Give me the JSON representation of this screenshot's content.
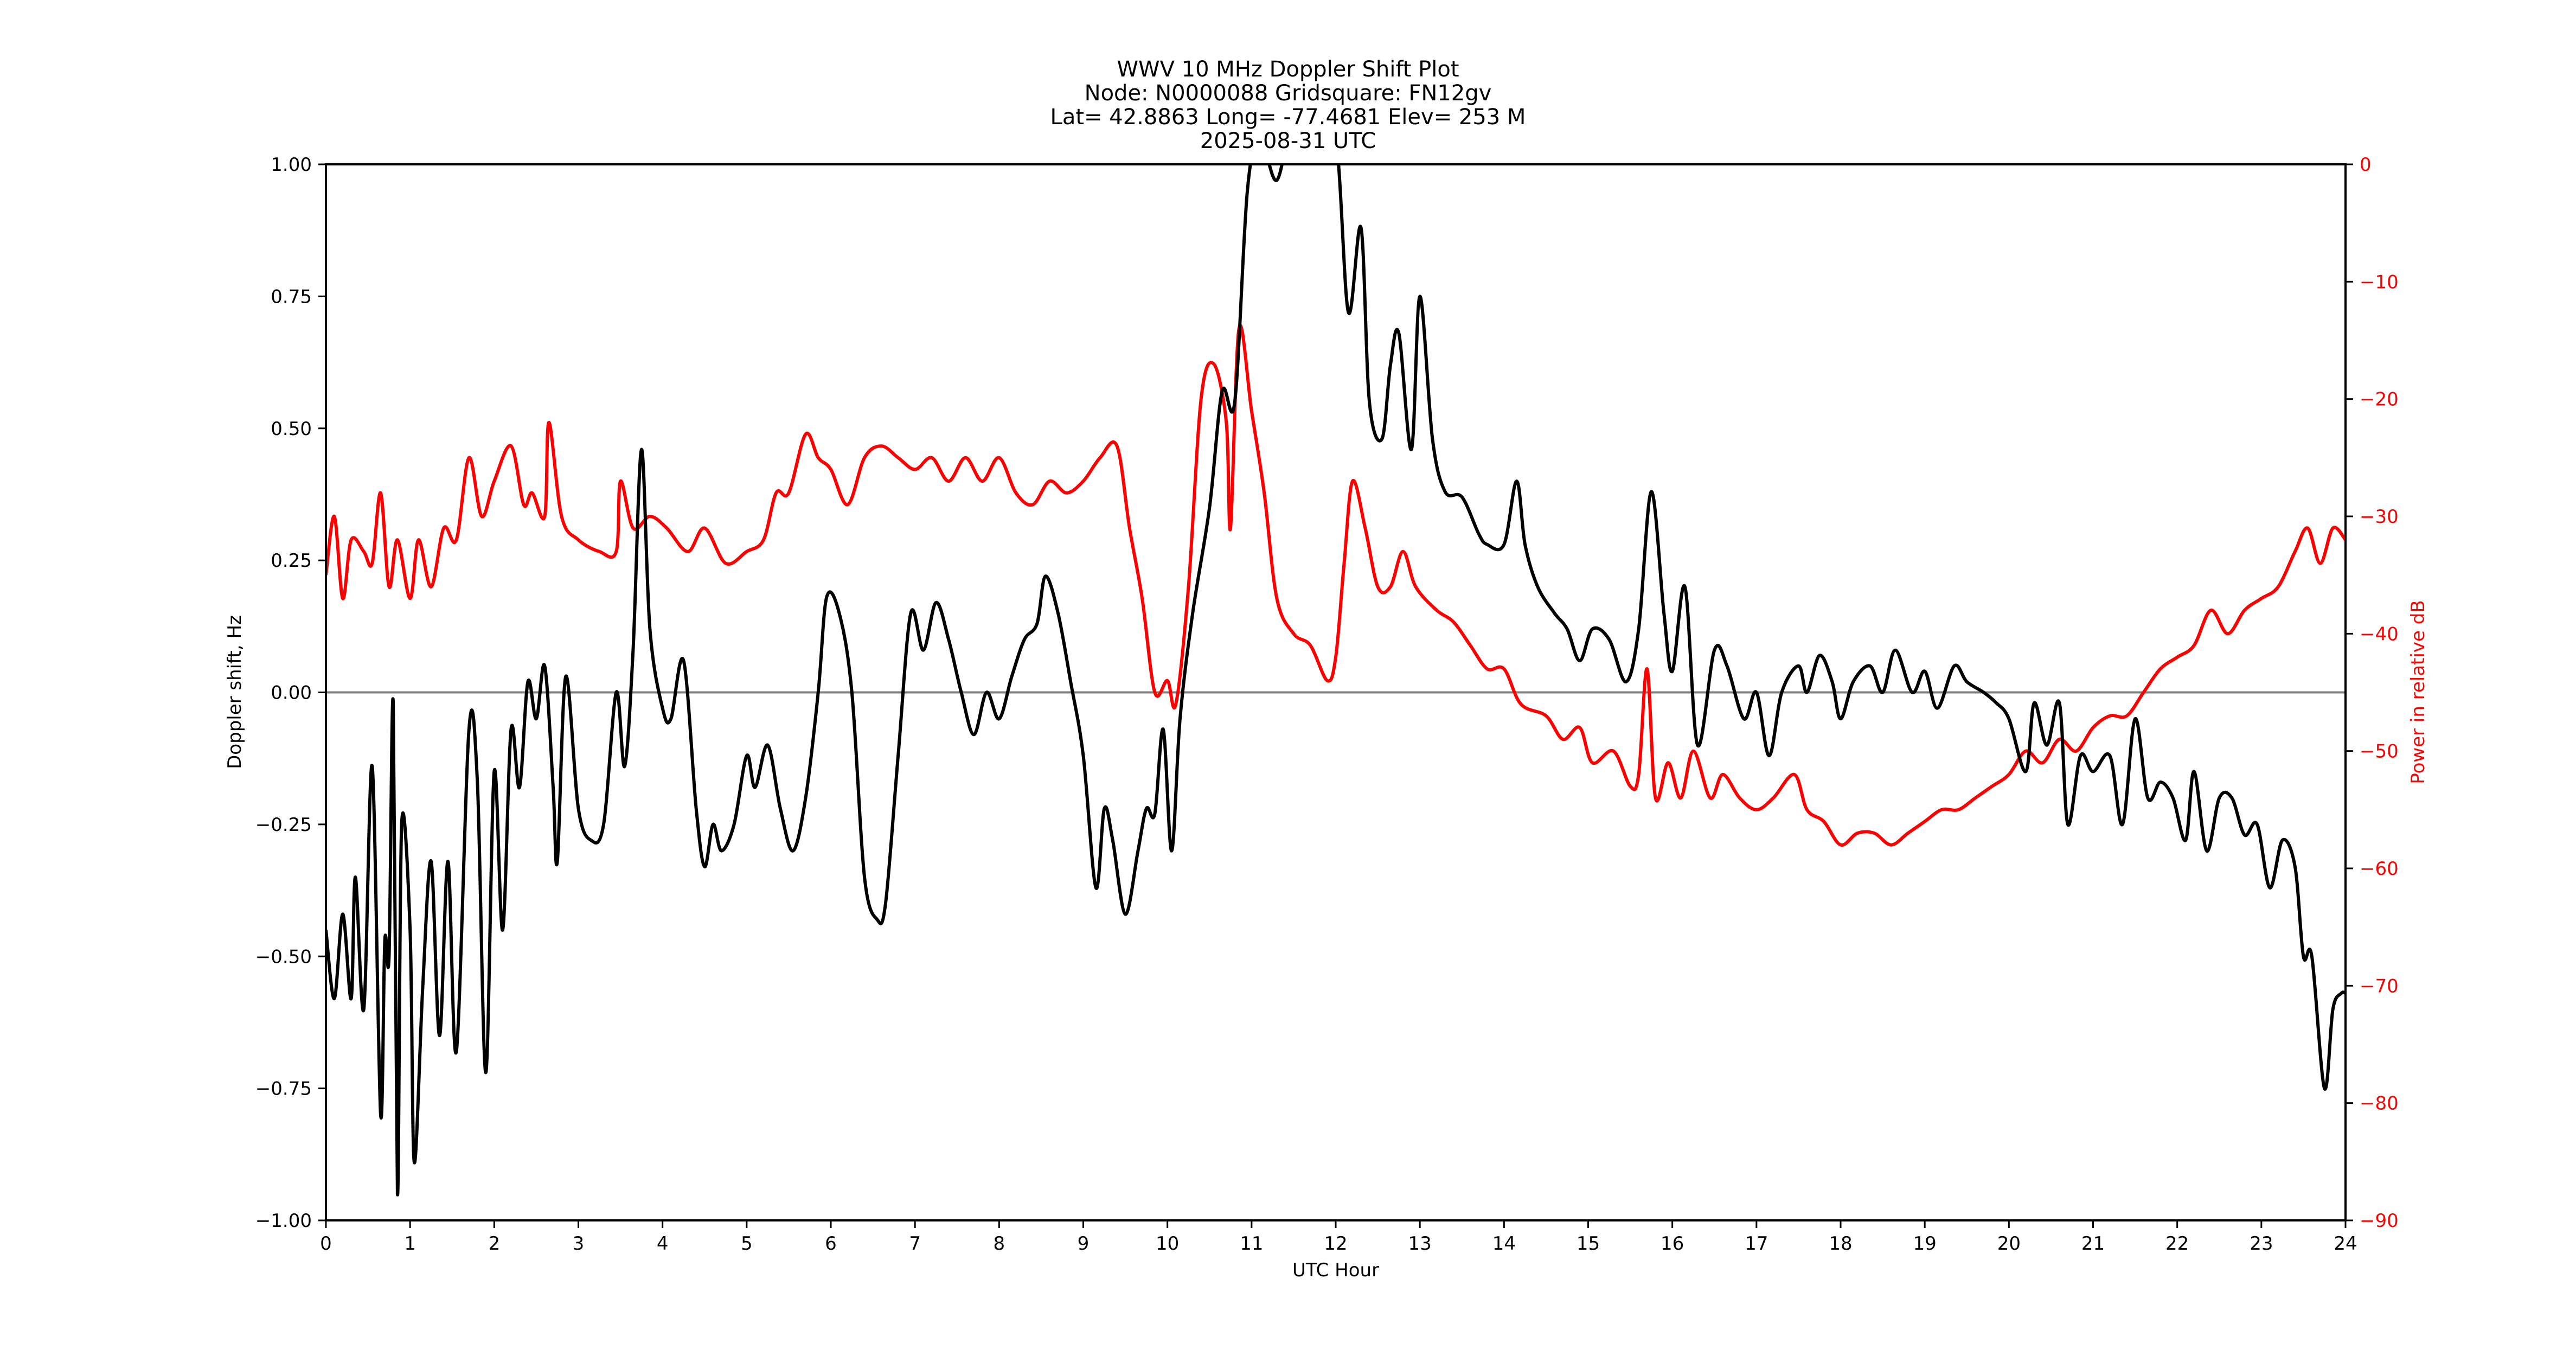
{
  "chart_data": {
    "type": "line",
    "title": "WWV 10 MHz Doppler Shift Plot",
    "subtitle_lines": [
      "Node:  N0000088     Gridsquare:  FN12gv",
      "Lat= 42.8863    Long= -77.4681    Elev= 253 M",
      "2025-08-31  UTC"
    ],
    "xlabel": "UTC Hour",
    "ylabel": "Doppler shift, Hz",
    "y2label": "Power in relative dB",
    "xlim": [
      0,
      24
    ],
    "ylim": [
      -1.0,
      1.0
    ],
    "y2lim": [
      -90,
      0
    ],
    "x_ticks": [
      "0",
      "1",
      "2",
      "3",
      "4",
      "5",
      "6",
      "7",
      "8",
      "9",
      "10",
      "11",
      "12",
      "13",
      "14",
      "15",
      "16",
      "17",
      "18",
      "19",
      "20",
      "21",
      "22",
      "23",
      "24"
    ],
    "y_ticks": [
      "1.00",
      "0.75",
      "0.50",
      "0.25",
      "0.00",
      "−0.25",
      "−0.50",
      "−0.75",
      "−1.00"
    ],
    "y_tick_values": [
      1.0,
      0.75,
      0.5,
      0.25,
      0.0,
      -0.25,
      -0.5,
      -0.75,
      -1.0
    ],
    "y2_ticks": [
      "0",
      "−10",
      "−20",
      "−30",
      "−40",
      "−50",
      "−60",
      "−70",
      "−80",
      "−90"
    ],
    "y2_tick_values": [
      0,
      -10,
      -20,
      -30,
      -40,
      -50,
      -60,
      -70,
      -80,
      -90
    ],
    "grid": false,
    "zero_line": {
      "y": 0.0,
      "color": "#808080"
    },
    "legend": null,
    "series": [
      {
        "name": "Doppler shift",
        "axis": "left",
        "color": "#000000",
        "x": [
          0,
          0.1,
          0.2,
          0.3,
          0.35,
          0.45,
          0.55,
          0.65,
          0.7,
          0.75,
          0.8,
          0.85,
          0.9,
          1.0,
          1.05,
          1.15,
          1.25,
          1.35,
          1.45,
          1.55,
          1.7,
          1.8,
          1.9,
          2.0,
          2.1,
          2.2,
          2.3,
          2.4,
          2.5,
          2.6,
          2.7,
          2.75,
          2.85,
          3.0,
          3.15,
          3.3,
          3.45,
          3.55,
          3.65,
          3.75,
          3.85,
          4.0,
          4.1,
          4.25,
          4.4,
          4.5,
          4.6,
          4.7,
          4.85,
          5.0,
          5.1,
          5.25,
          5.4,
          5.55,
          5.7,
          5.85,
          5.95,
          6.1,
          6.25,
          6.4,
          6.55,
          6.65,
          6.8,
          6.95,
          7.1,
          7.25,
          7.4,
          7.55,
          7.7,
          7.85,
          8.0,
          8.15,
          8.3,
          8.45,
          8.55,
          8.7,
          8.85,
          9.0,
          9.15,
          9.25,
          9.35,
          9.5,
          9.65,
          9.75,
          9.85,
          9.95,
          10.05,
          10.15,
          10.3,
          10.5,
          10.65,
          10.8,
          10.95,
          11.1,
          11.3,
          11.5,
          11.75,
          12.0,
          12.15,
          12.3,
          12.4,
          12.55,
          12.65,
          12.75,
          12.9,
          13.0,
          13.15,
          13.3,
          13.5,
          13.7,
          13.8,
          14.0,
          14.15,
          14.25,
          14.4,
          14.6,
          14.75,
          14.9,
          15.05,
          15.25,
          15.45,
          15.6,
          15.75,
          15.9,
          16.0,
          16.15,
          16.3,
          16.5,
          16.65,
          16.85,
          17.0,
          17.15,
          17.3,
          17.5,
          17.6,
          17.75,
          17.9,
          18.0,
          18.15,
          18.35,
          18.5,
          18.65,
          18.85,
          19.0,
          19.15,
          19.35,
          19.5,
          19.7,
          19.85,
          20.0,
          20.2,
          20.3,
          20.45,
          20.6,
          20.7,
          20.85,
          21.0,
          21.2,
          21.35,
          21.5,
          21.65,
          21.8,
          21.95,
          22.1,
          22.2,
          22.35,
          22.5,
          22.65,
          22.8,
          22.95,
          23.1,
          23.25,
          23.4,
          23.5,
          23.6,
          23.75,
          23.85,
          23.95,
          24.0
        ],
        "values": [
          -0.45,
          -0.58,
          -0.42,
          -0.58,
          -0.35,
          -0.6,
          -0.14,
          -0.8,
          -0.47,
          -0.5,
          -0.02,
          -0.95,
          -0.25,
          -0.45,
          -0.89,
          -0.56,
          -0.32,
          -0.65,
          -0.32,
          -0.68,
          -0.07,
          -0.17,
          -0.72,
          -0.15,
          -0.45,
          -0.07,
          -0.18,
          0.02,
          -0.05,
          0.05,
          -0.18,
          -0.32,
          0.03,
          -0.22,
          -0.28,
          -0.25,
          0.0,
          -0.14,
          0.08,
          0.46,
          0.12,
          -0.03,
          -0.05,
          0.06,
          -0.22,
          -0.33,
          -0.25,
          -0.3,
          -0.25,
          -0.12,
          -0.18,
          -0.1,
          -0.22,
          -0.3,
          -0.2,
          0.0,
          0.18,
          0.15,
          0.0,
          -0.35,
          -0.43,
          -0.4,
          -0.12,
          0.15,
          0.08,
          0.17,
          0.1,
          0.0,
          -0.08,
          0.0,
          -0.05,
          0.03,
          0.1,
          0.13,
          0.22,
          0.15,
          0.02,
          -0.12,
          -0.37,
          -0.22,
          -0.28,
          -0.42,
          -0.3,
          -0.22,
          -0.23,
          -0.07,
          -0.3,
          -0.05,
          0.15,
          0.35,
          0.57,
          0.55,
          0.95,
          1.05,
          0.97,
          1.1,
          1.1,
          1.05,
          0.72,
          0.88,
          0.55,
          0.48,
          0.62,
          0.68,
          0.46,
          0.75,
          0.48,
          0.38,
          0.37,
          0.3,
          0.28,
          0.28,
          0.4,
          0.28,
          0.2,
          0.15,
          0.12,
          0.06,
          0.12,
          0.1,
          0.02,
          0.12,
          0.38,
          0.15,
          0.04,
          0.2,
          -0.1,
          0.08,
          0.05,
          -0.05,
          0.0,
          -0.12,
          0.0,
          0.05,
          0.0,
          0.07,
          0.02,
          -0.05,
          0.02,
          0.05,
          0.0,
          0.08,
          0.0,
          0.04,
          -0.03,
          0.05,
          0.02,
          0.0,
          -0.02,
          -0.05,
          -0.15,
          -0.02,
          -0.1,
          -0.02,
          -0.25,
          -0.12,
          -0.15,
          -0.12,
          -0.25,
          -0.05,
          -0.2,
          -0.17,
          -0.2,
          -0.28,
          -0.15,
          -0.3,
          -0.2,
          -0.2,
          -0.27,
          -0.25,
          -0.37,
          -0.28,
          -0.33,
          -0.5,
          -0.5,
          -0.75,
          -0.6,
          -0.57,
          -0.57
        ]
      },
      {
        "name": "Power",
        "axis": "right",
        "color": "#ff0000",
        "x": [
          0,
          0.1,
          0.2,
          0.3,
          0.45,
          0.55,
          0.65,
          0.75,
          0.85,
          1.0,
          1.1,
          1.25,
          1.4,
          1.55,
          1.7,
          1.85,
          2.0,
          2.2,
          2.35,
          2.45,
          2.6,
          2.65,
          2.8,
          3.0,
          3.25,
          3.45,
          3.5,
          3.65,
          3.85,
          4.05,
          4.3,
          4.5,
          4.75,
          5.0,
          5.2,
          5.35,
          5.5,
          5.7,
          5.85,
          6.0,
          6.2,
          6.4,
          6.6,
          6.8,
          7.0,
          7.2,
          7.4,
          7.6,
          7.8,
          8.0,
          8.2,
          8.4,
          8.6,
          8.8,
          9.0,
          9.2,
          9.4,
          9.55,
          9.7,
          9.85,
          10.0,
          10.1,
          10.25,
          10.4,
          10.55,
          10.7,
          10.75,
          10.85,
          11.0,
          11.15,
          11.3,
          11.5,
          11.7,
          11.9,
          12.0,
          12.1,
          12.2,
          12.35,
          12.5,
          12.65,
          12.8,
          12.95,
          13.2,
          13.4,
          13.6,
          13.8,
          14.0,
          14.2,
          14.5,
          14.7,
          14.9,
          15.05,
          15.3,
          15.5,
          15.6,
          15.7,
          15.8,
          15.95,
          16.1,
          16.25,
          16.45,
          16.6,
          16.8,
          17.0,
          17.2,
          17.45,
          17.6,
          17.8,
          18.0,
          18.2,
          18.4,
          18.6,
          18.8,
          19.0,
          19.2,
          19.4,
          19.6,
          19.8,
          20.0,
          20.2,
          20.4,
          20.6,
          20.8,
          21.0,
          21.2,
          21.4,
          21.6,
          21.8,
          22.0,
          22.2,
          22.4,
          22.6,
          22.8,
          23.0,
          23.2,
          23.4,
          23.55,
          23.7,
          23.85,
          24.0
        ],
        "values": [
          -35,
          -30,
          -37,
          -32,
          -33,
          -34,
          -28,
          -36,
          -32,
          -37,
          -32,
          -36,
          -31,
          -32,
          -25,
          -30,
          -27,
          -24,
          -29,
          -28,
          -30,
          -22,
          -30,
          -32,
          -33,
          -33,
          -27,
          -31,
          -30,
          -31,
          -33,
          -31,
          -34,
          -33,
          -32,
          -28,
          -28,
          -23,
          -25,
          -26,
          -29,
          -25,
          -24,
          -25,
          -26,
          -25,
          -27,
          -25,
          -27,
          -25,
          -28,
          -29,
          -27,
          -28,
          -27,
          -25,
          -24,
          -31,
          -37,
          -45,
          -44,
          -46,
          -36,
          -20,
          -17,
          -22,
          -31,
          -14,
          -21,
          -28,
          -37,
          -40,
          -41,
          -44,
          -42,
          -34,
          -27,
          -31,
          -36,
          -36,
          -33,
          -36,
          -38,
          -39,
          -41,
          -43,
          -43,
          -46,
          -47,
          -49,
          -48,
          -51,
          -50,
          -53,
          -52,
          -43,
          -54,
          -51,
          -54,
          -50,
          -54,
          -52,
          -54,
          -55,
          -54,
          -52,
          -55,
          -56,
          -58,
          -57,
          -57,
          -58,
          -57,
          -56,
          -55,
          -55,
          -54,
          -53,
          -52,
          -50,
          -51,
          -49,
          -50,
          -48,
          -47,
          -47,
          -45,
          -43,
          -42,
          -41,
          -38,
          -40,
          -38,
          -37,
          -36,
          -33,
          -31,
          -34,
          -31,
          -32
        ]
      }
    ]
  }
}
